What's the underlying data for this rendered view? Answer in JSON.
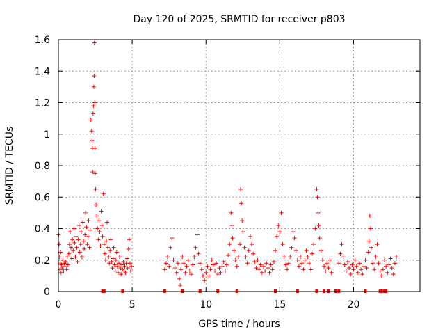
{
  "chart_data": {
    "type": "scatter",
    "title": "Day 120 of 2025, SRMTID for receiver p803",
    "xlabel": "GPS time / hours",
    "ylabel": "SRMTID / TECUs",
    "xlim": [
      0,
      24.5
    ],
    "ylim": [
      0,
      1.6
    ],
    "xticks": [
      0,
      5,
      10,
      15,
      20
    ],
    "yticks": [
      0,
      0.2,
      0.4,
      0.6,
      0.8,
      1,
      1.2,
      1.4,
      1.6
    ],
    "xtick_labels": [
      "0",
      "5",
      "10",
      "15",
      "20"
    ],
    "ytick_labels": [
      "0",
      "0.2",
      "0.4",
      "0.6",
      "0.8",
      "1",
      "1.2",
      "1.4",
      "1.6"
    ],
    "grid": true,
    "marker": "+",
    "color": "#ff0000",
    "series": [
      {
        "name": "SRMTID",
        "points": [
          [
            0.02,
            0.36
          ],
          [
            0.05,
            0.3
          ],
          [
            0.08,
            0.22
          ],
          [
            0.1,
            0.14
          ],
          [
            0.12,
            0.18
          ],
          [
            0.15,
            0.25
          ],
          [
            0.18,
            0.12
          ],
          [
            0.2,
            0.17
          ],
          [
            0.25,
            0.15
          ],
          [
            0.3,
            0.2
          ],
          [
            0.35,
            0.13
          ],
          [
            0.4,
            0.18
          ],
          [
            0.45,
            0.16
          ],
          [
            0.5,
            0.19
          ],
          [
            0.55,
            0.14
          ],
          [
            0.6,
            0.22
          ],
          [
            0.65,
            0.17
          ],
          [
            0.7,
            0.24
          ],
          [
            0.75,
            0.3
          ],
          [
            0.8,
            0.38
          ],
          [
            0.85,
            0.28
          ],
          [
            0.9,
            0.21
          ],
          [
            0.95,
            0.33
          ],
          [
            1.0,
            0.26
          ],
          [
            1.05,
            0.4
          ],
          [
            1.1,
            0.31
          ],
          [
            1.15,
            0.22
          ],
          [
            1.2,
            0.35
          ],
          [
            1.25,
            0.28
          ],
          [
            1.3,
            0.19
          ],
          [
            1.35,
            0.33
          ],
          [
            1.4,
            0.42
          ],
          [
            1.45,
            0.25
          ],
          [
            1.5,
            0.3
          ],
          [
            1.55,
            0.38
          ],
          [
            1.6,
            0.22
          ],
          [
            1.65,
            0.44
          ],
          [
            1.7,
            0.32
          ],
          [
            1.75,
            0.27
          ],
          [
            1.8,
            0.36
          ],
          [
            1.85,
            0.5
          ],
          [
            1.9,
            0.41
          ],
          [
            1.95,
            0.3
          ],
          [
            2.0,
            0.35
          ],
          [
            2.05,
            0.45
          ],
          [
            2.1,
            0.28
          ],
          [
            2.15,
            0.39
          ],
          [
            2.2,
            1.09
          ],
          [
            2.25,
            1.02
          ],
          [
            2.28,
            0.96
          ],
          [
            2.3,
            0.91
          ],
          [
            2.32,
            0.76
          ],
          [
            2.35,
            1.13
          ],
          [
            2.38,
            1.18
          ],
          [
            2.4,
            1.3
          ],
          [
            2.42,
            1.37
          ],
          [
            2.44,
            1.58
          ],
          [
            2.46,
            1.2
          ],
          [
            2.48,
            0.91
          ],
          [
            2.5,
            0.75
          ],
          [
            2.52,
            0.65
          ],
          [
            2.55,
            0.55
          ],
          [
            2.6,
            0.48
          ],
          [
            2.65,
            0.4
          ],
          [
            2.7,
            0.33
          ],
          [
            2.75,
            0.45
          ],
          [
            2.8,
            0.38
          ],
          [
            2.85,
            0.29
          ],
          [
            2.9,
            0.51
          ],
          [
            2.95,
            0.42
          ],
          [
            3.0,
            0.35
          ],
          [
            3.05,
            0.62
          ],
          [
            3.1,
            0.3
          ],
          [
            3.15,
            0.24
          ],
          [
            3.2,
            0.2
          ],
          [
            3.25,
            0.32
          ],
          [
            3.3,
            0.44
          ],
          [
            3.35,
            0.28
          ],
          [
            3.4,
            0.22
          ],
          [
            3.45,
            0.18
          ],
          [
            3.5,
            0.26
          ],
          [
            3.55,
            0.33
          ],
          [
            3.6,
            0.19
          ],
          [
            3.65,
            0.15
          ],
          [
            3.7,
            0.21
          ],
          [
            3.75,
            0.28
          ],
          [
            3.8,
            0.17
          ],
          [
            3.85,
            0.13
          ],
          [
            3.9,
            0.2
          ],
          [
            3.95,
            0.25
          ],
          [
            4.0,
            0.16
          ],
          [
            4.05,
            0.12
          ],
          [
            4.1,
            0.18
          ],
          [
            4.15,
            0.22
          ],
          [
            4.2,
            0.15
          ],
          [
            4.25,
            0.11
          ],
          [
            4.3,
            0.17
          ],
          [
            4.35,
            0.14
          ],
          [
            4.4,
            0.19
          ],
          [
            4.45,
            0.13
          ],
          [
            4.5,
            0.16
          ],
          [
            4.55,
            0.12
          ],
          [
            4.6,
            0.18
          ],
          [
            4.65,
            0.21
          ],
          [
            4.7,
            0.15
          ],
          [
            4.75,
            0.27
          ],
          [
            4.8,
            0.33
          ],
          [
            4.85,
            0.18
          ],
          [
            4.9,
            0.13
          ],
          [
            4.95,
            0.16
          ],
          [
            7.2,
            0.14
          ],
          [
            7.3,
            0.18
          ],
          [
            7.4,
            0.22
          ],
          [
            7.5,
            0.16
          ],
          [
            7.6,
            0.28
          ],
          [
            7.7,
            0.34
          ],
          [
            7.8,
            0.2
          ],
          [
            7.9,
            0.15
          ],
          [
            8.0,
            0.12
          ],
          [
            8.1,
            0.18
          ],
          [
            8.2,
            0.08
          ],
          [
            8.25,
            0.04
          ],
          [
            8.3,
            0.14
          ],
          [
            8.4,
            0.22
          ],
          [
            8.5,
            0.18
          ],
          [
            8.6,
            0.12
          ],
          [
            8.7,
            0.16
          ],
          [
            8.8,
            0.2
          ],
          [
            8.9,
            0.13
          ],
          [
            9.0,
            0.11
          ],
          [
            9.1,
            0.17
          ],
          [
            9.2,
            0.22
          ],
          [
            9.3,
            0.28
          ],
          [
            9.4,
            0.36
          ],
          [
            9.5,
            0.24
          ],
          [
            9.6,
            0.18
          ],
          [
            9.7,
            0.14
          ],
          [
            9.8,
            0.1
          ],
          [
            9.9,
            0.07
          ],
          [
            10.0,
            0.12
          ],
          [
            10.1,
            0.16
          ],
          [
            10.2,
            0.1
          ],
          [
            10.3,
            0.14
          ],
          [
            10.4,
            0.2
          ],
          [
            10.5,
            0.17
          ],
          [
            10.6,
            0.13
          ],
          [
            10.7,
            0.18
          ],
          [
            10.8,
            0.11
          ],
          [
            10.9,
            0.15
          ],
          [
            11.0,
            0.12
          ],
          [
            11.1,
            0.16
          ],
          [
            11.2,
            0.19
          ],
          [
            11.3,
            0.13
          ],
          [
            11.4,
            0.17
          ],
          [
            11.5,
            0.23
          ],
          [
            11.6,
            0.3
          ],
          [
            11.7,
            0.5
          ],
          [
            11.75,
            0.42
          ],
          [
            11.8,
            0.34
          ],
          [
            11.9,
            0.26
          ],
          [
            12.0,
            0.2
          ],
          [
            12.1,
            0.16
          ],
          [
            12.2,
            0.22
          ],
          [
            12.3,
            0.3
          ],
          [
            12.35,
            0.65
          ],
          [
            12.4,
            0.56
          ],
          [
            12.45,
            0.45
          ],
          [
            12.5,
            0.38
          ],
          [
            12.6,
            0.28
          ],
          [
            12.7,
            0.22
          ],
          [
            12.8,
            0.18
          ],
          [
            12.9,
            0.26
          ],
          [
            13.0,
            0.35
          ],
          [
            13.1,
            0.3
          ],
          [
            13.2,
            0.24
          ],
          [
            13.3,
            0.19
          ],
          [
            13.4,
            0.15
          ],
          [
            13.5,
            0.2
          ],
          [
            13.6,
            0.14
          ],
          [
            13.7,
            0.17
          ],
          [
            13.8,
            0.12
          ],
          [
            13.9,
            0.16
          ],
          [
            14.0,
            0.13
          ],
          [
            14.1,
            0.18
          ],
          [
            14.2,
            0.15
          ],
          [
            14.3,
            0.12
          ],
          [
            14.4,
            0.17
          ],
          [
            14.5,
            0.14
          ],
          [
            14.6,
            0.19
          ],
          [
            14.7,
            0.26
          ],
          [
            14.8,
            0.35
          ],
          [
            14.9,
            0.42
          ],
          [
            15.0,
            0.38
          ],
          [
            15.1,
            0.5
          ],
          [
            15.2,
            0.3
          ],
          [
            15.3,
            0.22
          ],
          [
            15.4,
            0.17
          ],
          [
            15.5,
            0.14
          ],
          [
            15.6,
            0.18
          ],
          [
            15.7,
            0.22
          ],
          [
            15.8,
            0.28
          ],
          [
            15.9,
            0.38
          ],
          [
            16.0,
            0.34
          ],
          [
            16.1,
            0.26
          ],
          [
            16.2,
            0.2
          ],
          [
            16.3,
            0.16
          ],
          [
            16.4,
            0.22
          ],
          [
            16.5,
            0.18
          ],
          [
            16.6,
            0.14
          ],
          [
            16.7,
            0.2
          ],
          [
            16.8,
            0.26
          ],
          [
            16.9,
            0.22
          ],
          [
            17.0,
            0.18
          ],
          [
            17.1,
            0.14
          ],
          [
            17.2,
            0.24
          ],
          [
            17.3,
            0.3
          ],
          [
            17.4,
            0.4
          ],
          [
            17.5,
            0.65
          ],
          [
            17.55,
            0.6
          ],
          [
            17.6,
            0.5
          ],
          [
            17.65,
            0.42
          ],
          [
            17.7,
            0.34
          ],
          [
            17.8,
            0.26
          ],
          [
            17.9,
            0.2
          ],
          [
            18.0,
            0.16
          ],
          [
            18.1,
            0.13
          ],
          [
            18.2,
            0.18
          ],
          [
            18.3,
            0.15
          ],
          [
            18.4,
            0.2
          ],
          [
            18.5,
            0.12
          ],
          [
            19.0,
            0.18
          ],
          [
            19.1,
            0.24
          ],
          [
            19.2,
            0.3
          ],
          [
            19.3,
            0.22
          ],
          [
            19.4,
            0.17
          ],
          [
            19.5,
            0.13
          ],
          [
            19.6,
            0.19
          ],
          [
            19.7,
            0.15
          ],
          [
            19.8,
            0.11
          ],
          [
            19.9,
            0.17
          ],
          [
            20.0,
            0.14
          ],
          [
            20.1,
            0.2
          ],
          [
            20.2,
            0.16
          ],
          [
            20.3,
            0.12
          ],
          [
            20.4,
            0.18
          ],
          [
            20.5,
            0.14
          ],
          [
            20.6,
            0.11
          ],
          [
            20.7,
            0.16
          ],
          [
            20.8,
            0.2
          ],
          [
            20.9,
            0.15
          ],
          [
            21.0,
            0.25
          ],
          [
            21.05,
            0.32
          ],
          [
            21.1,
            0.48
          ],
          [
            21.15,
            0.4
          ],
          [
            21.2,
            0.28
          ],
          [
            21.3,
            0.18
          ],
          [
            21.4,
            0.14
          ],
          [
            21.5,
            0.22
          ],
          [
            21.6,
            0.3
          ],
          [
            21.7,
            0.18
          ],
          [
            21.8,
            0.13
          ],
          [
            21.9,
            0.1
          ],
          [
            22.0,
            0.14
          ],
          [
            22.1,
            0.2
          ],
          [
            22.2,
            0.16
          ],
          [
            22.3,
            0.12
          ],
          [
            22.4,
            0.17
          ],
          [
            22.5,
            0.21
          ],
          [
            22.6,
            0.15
          ],
          [
            22.7,
            0.11
          ],
          [
            22.8,
            0.18
          ],
          [
            22.9,
            0.22
          ]
        ]
      }
    ],
    "zero_marks": [
      3.0,
      3.1,
      4.35,
      7.2,
      8.4,
      9.6,
      10.8,
      12.1,
      14.7,
      16.2,
      17.5,
      18.0,
      18.3,
      18.8,
      19.0,
      20.8,
      21.8,
      21.9,
      22.1,
      22.2
    ]
  }
}
